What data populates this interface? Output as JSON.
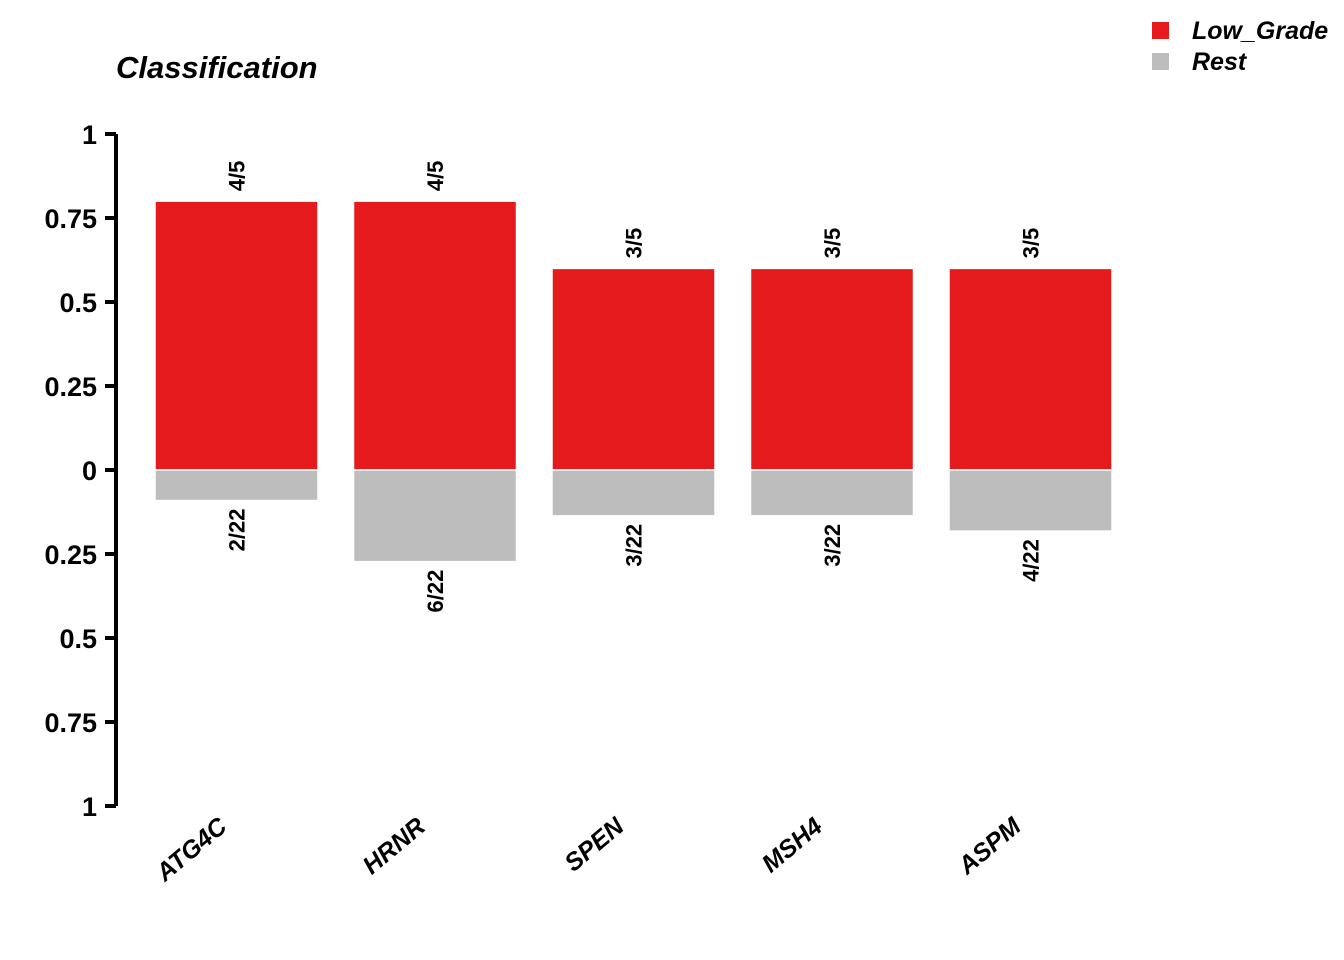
{
  "chart_data": {
    "type": "bar",
    "title": "Classification",
    "categories": [
      "ATG4C",
      "HRNR",
      "SPEN",
      "MSH4",
      "ASPM"
    ],
    "series": [
      {
        "name": "Low_Grade",
        "color": "#E41A1C",
        "direction": "up",
        "values": [
          0.8,
          0.8,
          0.6,
          0.6,
          0.6
        ],
        "labels": [
          "4/5",
          "4/5",
          "3/5",
          "3/5",
          "3/5"
        ]
      },
      {
        "name": "Rest",
        "color": "#BDBDBD",
        "direction": "down",
        "values": [
          0.0909,
          0.2727,
          0.1364,
          0.1364,
          0.1818
        ],
        "labels": [
          "2/22",
          "6/22",
          "3/22",
          "3/22",
          "4/22"
        ]
      }
    ],
    "ylim": [
      -1,
      1
    ],
    "yticks": [
      1,
      0.75,
      0.5,
      0.25,
      0,
      -0.25,
      -0.5,
      -0.75,
      -1
    ],
    "ytick_labels": [
      "1",
      "0.75",
      "0.5",
      "0.25",
      "0",
      "0.25",
      "0.5",
      "0.75",
      "1"
    ],
    "grid": false,
    "legend_position": "top-right"
  }
}
